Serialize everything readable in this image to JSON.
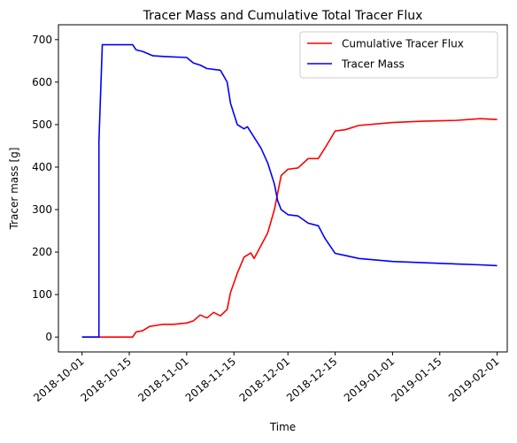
{
  "chart_data": {
    "type": "line",
    "title": "Tracer Mass and Cumulative Total Tracer Flux",
    "xlabel": "Time",
    "ylabel": "Tracer mass [g]",
    "x_ticks": [
      "2018-10-01",
      "2018-10-15",
      "2018-11-01",
      "2018-11-15",
      "2018-12-01",
      "2018-12-15",
      "2019-01-01",
      "2019-01-15",
      "2019-02-01"
    ],
    "y_ticks": [
      0,
      100,
      200,
      300,
      400,
      500,
      600,
      700
    ],
    "xlim": [
      "2018-09-24",
      "2019-02-04"
    ],
    "ylim": [
      -35,
      735
    ],
    "legend_position": "top-right",
    "series": [
      {
        "name": "Cumulative Tracer Flux",
        "color": "#ff0000",
        "points": [
          [
            "2018-10-01",
            0
          ],
          [
            "2018-10-04",
            0
          ],
          [
            "2018-10-16",
            0
          ],
          [
            "2018-10-17",
            12
          ],
          [
            "2018-10-19",
            15
          ],
          [
            "2018-10-21",
            25
          ],
          [
            "2018-10-25",
            30
          ],
          [
            "2018-10-28",
            30
          ],
          [
            "2018-11-01",
            33
          ],
          [
            "2018-11-03",
            38
          ],
          [
            "2018-11-05",
            52
          ],
          [
            "2018-11-07",
            45
          ],
          [
            "2018-11-09",
            58
          ],
          [
            "2018-11-11",
            50
          ],
          [
            "2018-11-13",
            65
          ],
          [
            "2018-11-14",
            105
          ],
          [
            "2018-11-16",
            150
          ],
          [
            "2018-11-18",
            188
          ],
          [
            "2018-11-20",
            198
          ],
          [
            "2018-11-21",
            185
          ],
          [
            "2018-11-23",
            215
          ],
          [
            "2018-11-25",
            245
          ],
          [
            "2018-11-27",
            300
          ],
          [
            "2018-11-28",
            340
          ],
          [
            "2018-11-29",
            380
          ],
          [
            "2018-12-01",
            395
          ],
          [
            "2018-12-04",
            398
          ],
          [
            "2018-12-07",
            420
          ],
          [
            "2018-12-10",
            420
          ],
          [
            "2018-12-12",
            445
          ],
          [
            "2018-12-15",
            485
          ],
          [
            "2018-12-18",
            488
          ],
          [
            "2018-12-22",
            498
          ],
          [
            "2019-01-01",
            505
          ],
          [
            "2019-01-10",
            508
          ],
          [
            "2019-01-20",
            510
          ],
          [
            "2019-01-27",
            514
          ],
          [
            "2019-02-01",
            512
          ]
        ]
      },
      {
        "name": "Tracer Mass",
        "color": "#0000ff",
        "points": [
          [
            "2018-10-01",
            0
          ],
          [
            "2018-10-06",
            0
          ],
          [
            "2018-10-06",
            460
          ],
          [
            "2018-10-07",
            688
          ],
          [
            "2018-10-15",
            688
          ],
          [
            "2018-10-16",
            688
          ],
          [
            "2018-10-17",
            676
          ],
          [
            "2018-10-19",
            672
          ],
          [
            "2018-10-22",
            662
          ],
          [
            "2018-10-26",
            660
          ],
          [
            "2018-11-01",
            658
          ],
          [
            "2018-11-03",
            645
          ],
          [
            "2018-11-05",
            640
          ],
          [
            "2018-11-07",
            632
          ],
          [
            "2018-11-09",
            630
          ],
          [
            "2018-11-11",
            628
          ],
          [
            "2018-11-13",
            600
          ],
          [
            "2018-11-14",
            550
          ],
          [
            "2018-11-16",
            500
          ],
          [
            "2018-11-18",
            490
          ],
          [
            "2018-11-19",
            495
          ],
          [
            "2018-11-21",
            470
          ],
          [
            "2018-11-23",
            445
          ],
          [
            "2018-11-25",
            410
          ],
          [
            "2018-11-27",
            360
          ],
          [
            "2018-11-28",
            320
          ],
          [
            "2018-11-29",
            300
          ],
          [
            "2018-12-01",
            288
          ],
          [
            "2018-12-04",
            285
          ],
          [
            "2018-12-07",
            268
          ],
          [
            "2018-12-10",
            262
          ],
          [
            "2018-12-12",
            232
          ],
          [
            "2018-12-15",
            197
          ],
          [
            "2018-12-18",
            192
          ],
          [
            "2018-12-22",
            185
          ],
          [
            "2019-01-01",
            178
          ],
          [
            "2019-01-10",
            175
          ],
          [
            "2019-01-20",
            172
          ],
          [
            "2019-01-27",
            170
          ],
          [
            "2019-02-01",
            168
          ]
        ]
      }
    ]
  }
}
